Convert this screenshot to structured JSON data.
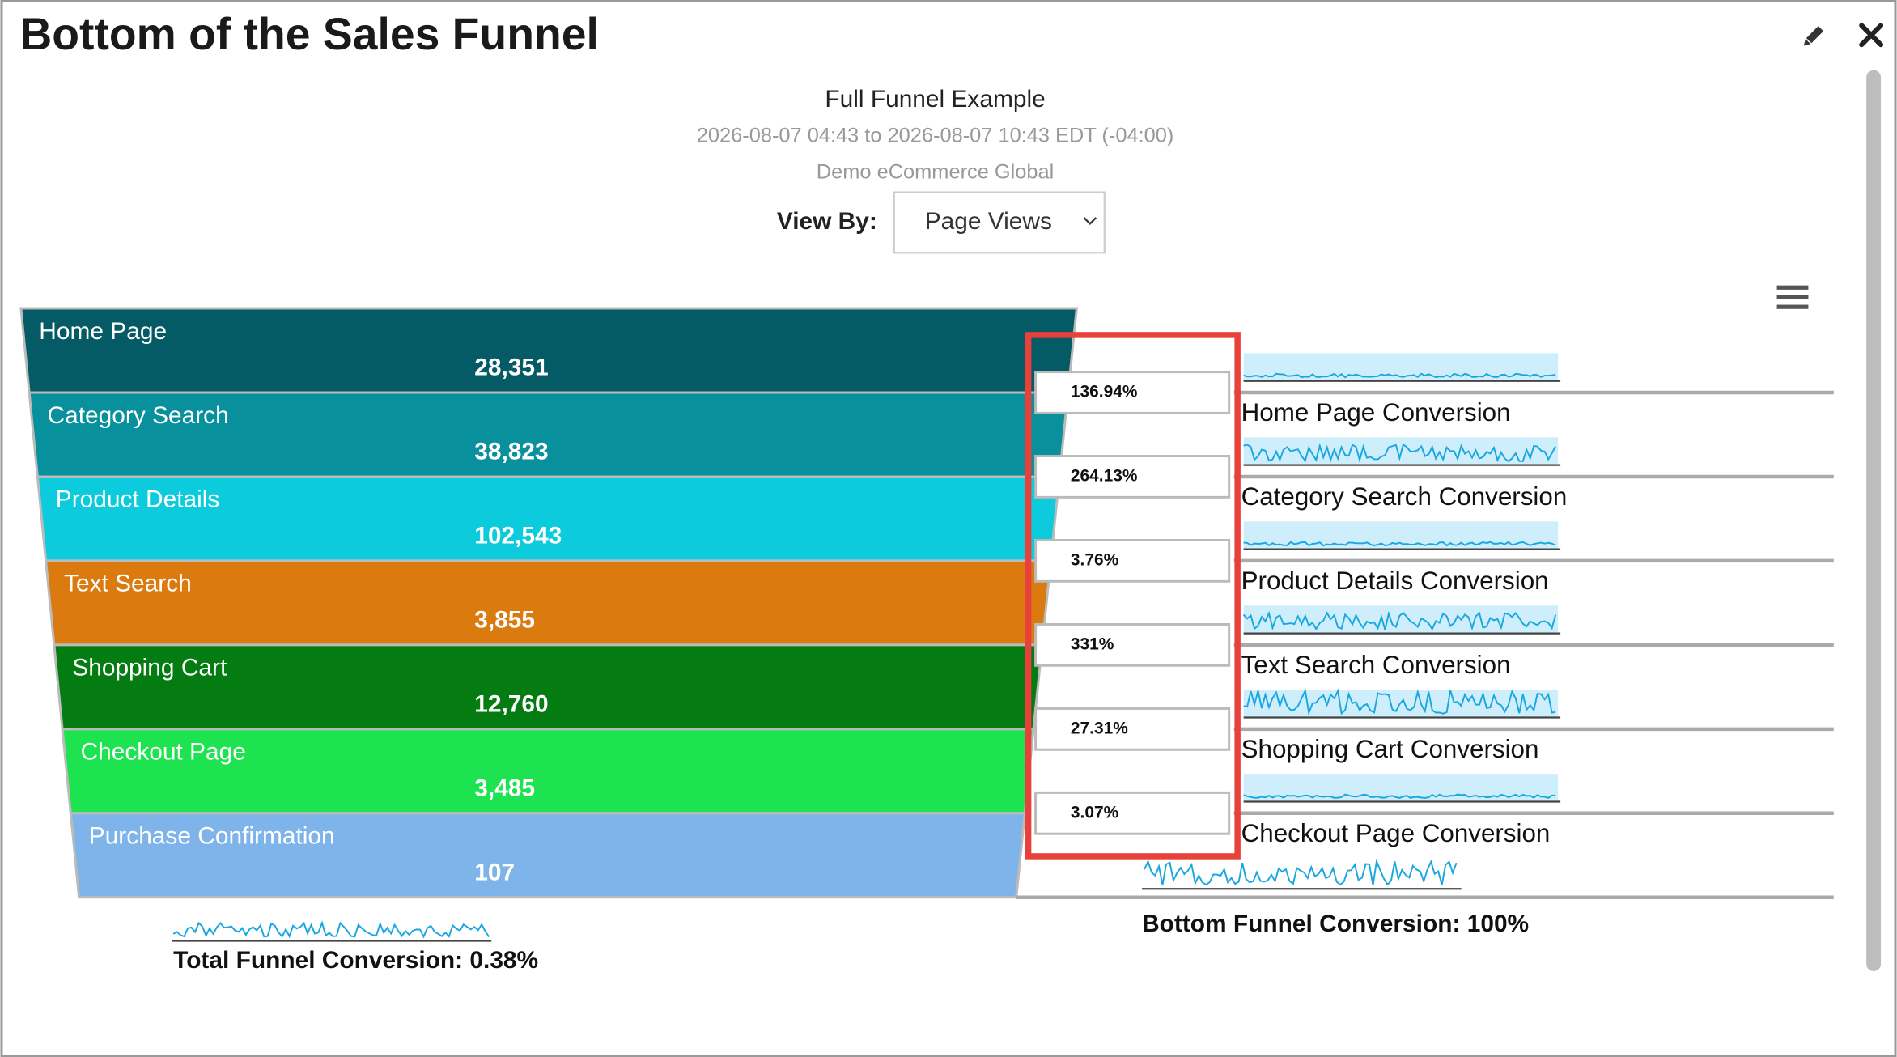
{
  "header": {
    "title": "Bottom of the Sales Funnel"
  },
  "report": {
    "name": "Full Funnel Example",
    "date_range": "2026-08-07 04:43 to 2026-08-07 10:43 EDT (-04:00)",
    "site": "Demo eCommerce Global"
  },
  "view_by": {
    "label": "View By:",
    "value": "Page Views"
  },
  "funnel": {
    "stages": [
      {
        "name": "Home Page",
        "value": "28,351"
      },
      {
        "name": "Category Search",
        "value": "38,823"
      },
      {
        "name": "Product Details",
        "value": "102,543"
      },
      {
        "name": "Text Search",
        "value": "3,855"
      },
      {
        "name": "Shopping Cart",
        "value": "12,760"
      },
      {
        "name": "Checkout Page",
        "value": "3,485"
      },
      {
        "name": "Purchase Confirmation",
        "value": "107"
      }
    ],
    "step_conversions": [
      "136.94%",
      "264.13%",
      "3.76%",
      "331%",
      "27.31%",
      "3.07%"
    ],
    "conversion_labels": [
      "Home Page Conversion",
      "Category Search Conversion",
      "Product Details Conversion",
      "Text Search Conversion",
      "Shopping Cart Conversion",
      "Checkout Page Conversion"
    ],
    "total": "Total Funnel Conversion: 0.38%",
    "bottom": "Bottom Funnel Conversion: 100%"
  }
}
